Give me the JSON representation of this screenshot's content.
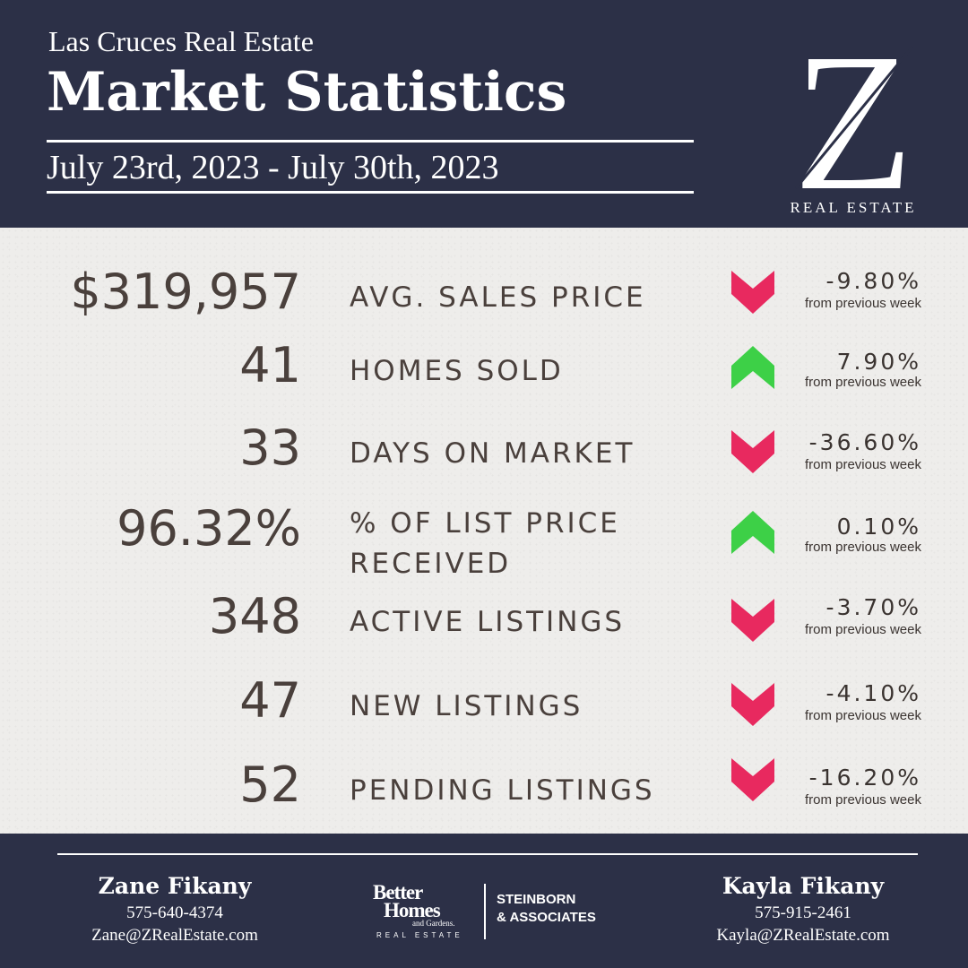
{
  "header": {
    "subtitle": "Las Cruces Real Estate",
    "title": "Market Statistics",
    "date_range": "July 23rd, 2023 - July 30th, 2023",
    "logo_letter": "Z",
    "logo_caption": "REAL ESTATE"
  },
  "colors": {
    "navy": "#2c3047",
    "panel": "#eeedeb",
    "up": "#3dd047",
    "down": "#e8295f",
    "text": "#4a403c"
  },
  "stats": [
    {
      "value": "$319,957",
      "label": "AVG. SALES PRICE",
      "change": "-9.80%",
      "note": "from previous week",
      "direction": "down"
    },
    {
      "value": "41",
      "label": "HOMES SOLD",
      "change": "7.90%",
      "note": "from previous week",
      "direction": "up"
    },
    {
      "value": "33",
      "label": "DAYS ON MARKET",
      "change": "-36.60%",
      "note": "from previous week",
      "direction": "down"
    },
    {
      "value": "96.32%",
      "label": "% OF LIST PRICE RECEIVED",
      "change": "0.10%",
      "note": "from previous week",
      "direction": "up"
    },
    {
      "value": "348",
      "label": "ACTIVE LISTINGS",
      "change": "-3.70%",
      "note": "from previous week",
      "direction": "down"
    },
    {
      "value": "47",
      "label": "NEW LISTINGS",
      "change": "-4.10%",
      "note": "from previous week",
      "direction": "down"
    },
    {
      "value": "52",
      "label": "PENDING LISTINGS",
      "change": "-16.20%",
      "note": "from previous week",
      "direction": "down"
    }
  ],
  "footer": {
    "agent_left": {
      "name": "Zane Fikany",
      "phone": "575-640-4374",
      "email": "Zane@ZRealEstate.com"
    },
    "agent_right": {
      "name": "Kayla Fikany",
      "phone": "575-915-2461",
      "email": "Kayla@ZRealEstate.com"
    },
    "brand": {
      "line1": "Better",
      "line2": "Homes",
      "line3": "and Gardens.",
      "line4": "REAL ESTATE",
      "partner_line1": "STEINBORN",
      "partner_line2": "& ASSOCIATES"
    }
  }
}
